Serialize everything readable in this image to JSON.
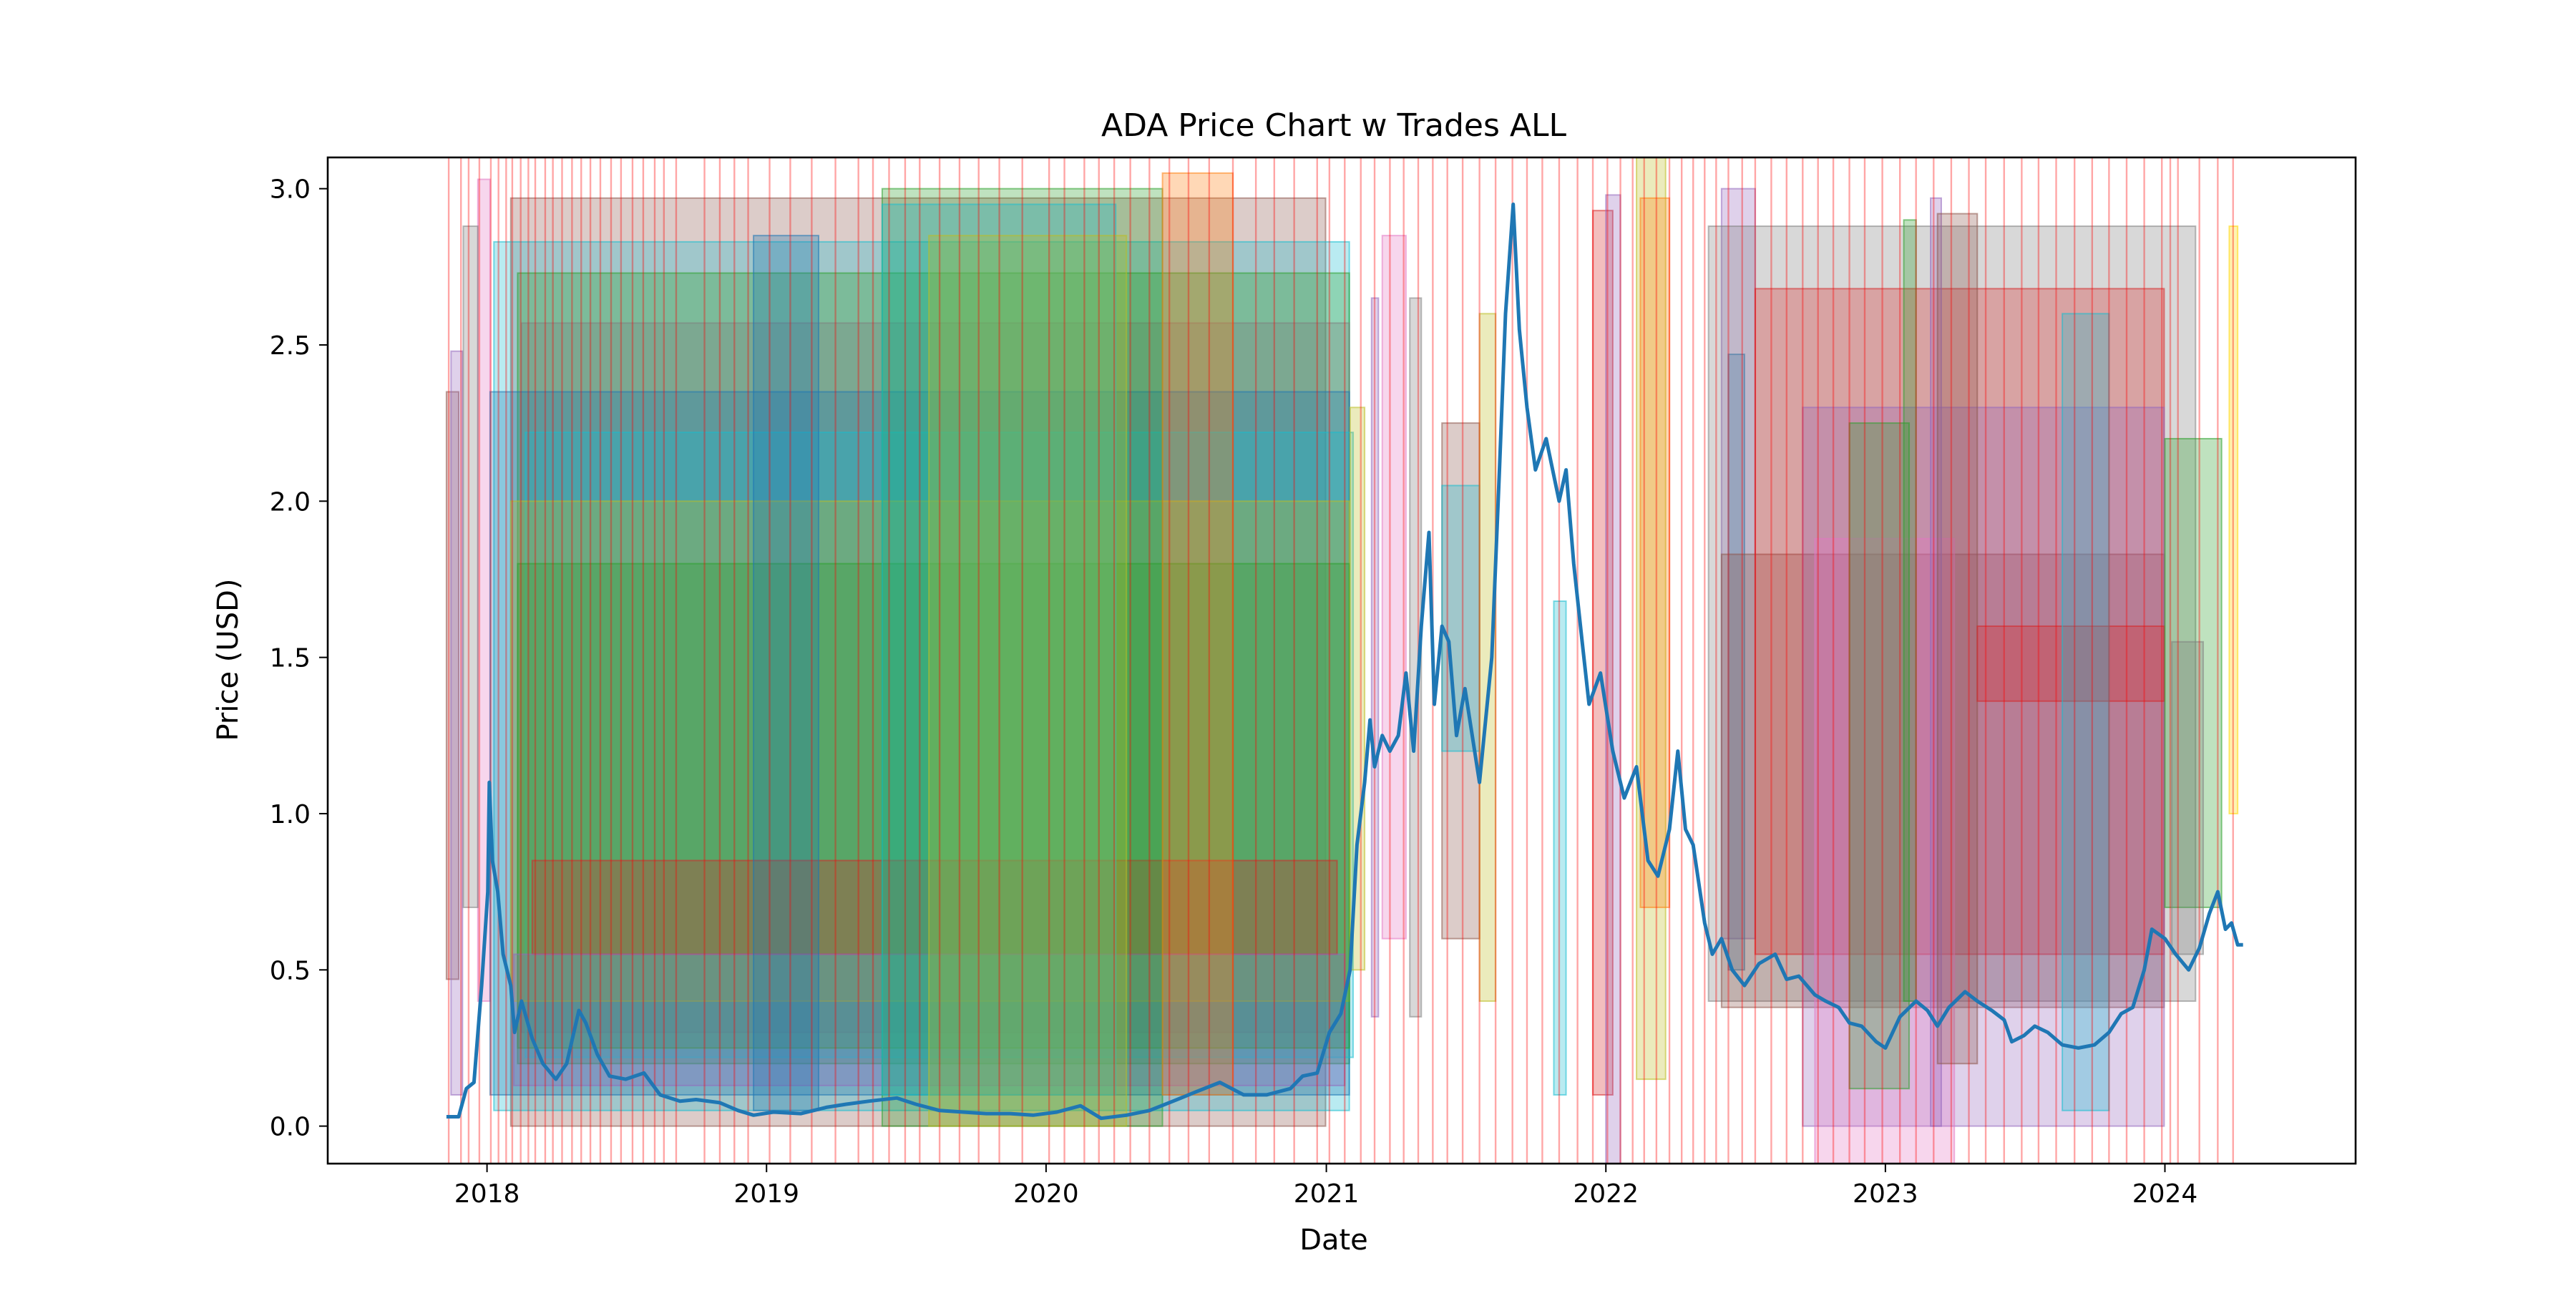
{
  "chart_data": {
    "type": "line",
    "title": "ADA Price Chart w Trades ALL",
    "xlabel": "Date",
    "ylabel": "Price (USD)",
    "xlim": [
      "2017-06-07",
      "2024-09-06"
    ],
    "ylim": [
      -0.12,
      3.1
    ],
    "x_ticks": [
      "2018-01-01",
      "2019-01-01",
      "2020-01-01",
      "2021-01-01",
      "2022-01-01",
      "2023-01-01",
      "2024-01-01"
    ],
    "x_tick_labels": [
      "2018",
      "2019",
      "2020",
      "2021",
      "2022",
      "2023",
      "2024"
    ],
    "y_ticks": [
      0.0,
      0.5,
      1.0,
      1.5,
      2.0,
      2.5,
      3.0
    ],
    "y_tick_labels": [
      "0.0",
      "0.5",
      "1.0",
      "1.5",
      "2.0",
      "2.5",
      "3.0"
    ],
    "grid": false,
    "series": [
      {
        "color": "#1f77b4",
        "points": [
          [
            "2017-11-09",
            0.03
          ],
          [
            "2017-11-25",
            0.03
          ],
          [
            "2017-12-05",
            0.12
          ],
          [
            "2017-12-15",
            0.14
          ],
          [
            "2017-12-25",
            0.45
          ],
          [
            "2017-12-29",
            0.6
          ],
          [
            "2018-01-02",
            0.75
          ],
          [
            "2018-01-04",
            1.1
          ],
          [
            "2018-01-08",
            0.85
          ],
          [
            "2018-01-15",
            0.75
          ],
          [
            "2018-01-22",
            0.55
          ],
          [
            "2018-02-01",
            0.45
          ],
          [
            "2018-02-06",
            0.3
          ],
          [
            "2018-02-15",
            0.4
          ],
          [
            "2018-03-01",
            0.28
          ],
          [
            "2018-03-15",
            0.2
          ],
          [
            "2018-04-01",
            0.15
          ],
          [
            "2018-04-15",
            0.2
          ],
          [
            "2018-05-01",
            0.37
          ],
          [
            "2018-05-10",
            0.33
          ],
          [
            "2018-05-25",
            0.23
          ],
          [
            "2018-06-10",
            0.16
          ],
          [
            "2018-07-01",
            0.15
          ],
          [
            "2018-07-25",
            0.17
          ],
          [
            "2018-08-15",
            0.1
          ],
          [
            "2018-09-10",
            0.08
          ],
          [
            "2018-10-01",
            0.085
          ],
          [
            "2018-11-01",
            0.075
          ],
          [
            "2018-11-25",
            0.05
          ],
          [
            "2018-12-15",
            0.035
          ],
          [
            "2019-01-10",
            0.045
          ],
          [
            "2019-02-15",
            0.04
          ],
          [
            "2019-03-20",
            0.06
          ],
          [
            "2019-04-15",
            0.07
          ],
          [
            "2019-05-15",
            0.08
          ],
          [
            "2019-06-20",
            0.09
          ],
          [
            "2019-07-15",
            0.07
          ],
          [
            "2019-08-15",
            0.05
          ],
          [
            "2019-09-15",
            0.045
          ],
          [
            "2019-10-15",
            0.04
          ],
          [
            "2019-11-15",
            0.04
          ],
          [
            "2019-12-15",
            0.035
          ],
          [
            "2020-01-15",
            0.045
          ],
          [
            "2020-02-15",
            0.065
          ],
          [
            "2020-03-13",
            0.025
          ],
          [
            "2020-04-15",
            0.035
          ],
          [
            "2020-05-15",
            0.05
          ],
          [
            "2020-06-15",
            0.08
          ],
          [
            "2020-07-15",
            0.11
          ],
          [
            "2020-08-15",
            0.14
          ],
          [
            "2020-09-15",
            0.1
          ],
          [
            "2020-10-15",
            0.1
          ],
          [
            "2020-11-15",
            0.12
          ],
          [
            "2020-12-01",
            0.16
          ],
          [
            "2020-12-20",
            0.17
          ],
          [
            "2021-01-05",
            0.3
          ],
          [
            "2021-01-20",
            0.36
          ],
          [
            "2021-02-01",
            0.5
          ],
          [
            "2021-02-10",
            0.9
          ],
          [
            "2021-02-20",
            1.1
          ],
          [
            "2021-02-27",
            1.3
          ],
          [
            "2021-03-05",
            1.15
          ],
          [
            "2021-03-15",
            1.25
          ],
          [
            "2021-03-25",
            1.2
          ],
          [
            "2021-04-05",
            1.25
          ],
          [
            "2021-04-15",
            1.45
          ],
          [
            "2021-04-25",
            1.2
          ],
          [
            "2021-05-05",
            1.6
          ],
          [
            "2021-05-15",
            1.9
          ],
          [
            "2021-05-22",
            1.35
          ],
          [
            "2021-06-01",
            1.6
          ],
          [
            "2021-06-10",
            1.55
          ],
          [
            "2021-06-20",
            1.25
          ],
          [
            "2021-07-01",
            1.4
          ],
          [
            "2021-07-20",
            1.1
          ],
          [
            "2021-07-28",
            1.3
          ],
          [
            "2021-08-05",
            1.5
          ],
          [
            "2021-08-15",
            2.1
          ],
          [
            "2021-08-23",
            2.6
          ],
          [
            "2021-09-02",
            2.95
          ],
          [
            "2021-09-10",
            2.55
          ],
          [
            "2021-09-20",
            2.3
          ],
          [
            "2021-10-01",
            2.1
          ],
          [
            "2021-10-15",
            2.2
          ],
          [
            "2021-11-01",
            2.0
          ],
          [
            "2021-11-10",
            2.1
          ],
          [
            "2021-11-20",
            1.8
          ],
          [
            "2021-12-01",
            1.55
          ],
          [
            "2021-12-10",
            1.35
          ],
          [
            "2021-12-25",
            1.45
          ],
          [
            "2022-01-10",
            1.2
          ],
          [
            "2022-01-25",
            1.05
          ],
          [
            "2022-02-10",
            1.15
          ],
          [
            "2022-02-25",
            0.85
          ],
          [
            "2022-03-10",
            0.8
          ],
          [
            "2022-03-25",
            0.95
          ],
          [
            "2022-04-05",
            1.2
          ],
          [
            "2022-04-15",
            0.95
          ],
          [
            "2022-04-25",
            0.9
          ],
          [
            "2022-05-10",
            0.65
          ],
          [
            "2022-05-20",
            0.55
          ],
          [
            "2022-06-01",
            0.6
          ],
          [
            "2022-06-15",
            0.5
          ],
          [
            "2022-07-01",
            0.45
          ],
          [
            "2022-07-20",
            0.52
          ],
          [
            "2022-08-10",
            0.55
          ],
          [
            "2022-08-25",
            0.47
          ],
          [
            "2022-09-10",
            0.48
          ],
          [
            "2022-10-01",
            0.42
          ],
          [
            "2022-10-15",
            0.4
          ],
          [
            "2022-11-01",
            0.38
          ],
          [
            "2022-11-15",
            0.33
          ],
          [
            "2022-12-01",
            0.32
          ],
          [
            "2022-12-20",
            0.27
          ],
          [
            "2023-01-01",
            0.25
          ],
          [
            "2023-01-20",
            0.35
          ],
          [
            "2023-02-10",
            0.4
          ],
          [
            "2023-02-25",
            0.37
          ],
          [
            "2023-03-10",
            0.32
          ],
          [
            "2023-03-25",
            0.38
          ],
          [
            "2023-04-15",
            0.43
          ],
          [
            "2023-05-01",
            0.4
          ],
          [
            "2023-05-20",
            0.37
          ],
          [
            "2023-06-05",
            0.34
          ],
          [
            "2023-06-15",
            0.27
          ],
          [
            "2023-07-01",
            0.29
          ],
          [
            "2023-07-15",
            0.32
          ],
          [
            "2023-08-01",
            0.3
          ],
          [
            "2023-08-20",
            0.26
          ],
          [
            "2023-09-10",
            0.25
          ],
          [
            "2023-10-01",
            0.26
          ],
          [
            "2023-10-20",
            0.3
          ],
          [
            "2023-11-05",
            0.36
          ],
          [
            "2023-11-20",
            0.38
          ],
          [
            "2023-12-05",
            0.5
          ],
          [
            "2023-12-15",
            0.63
          ],
          [
            "2024-01-01",
            0.6
          ],
          [
            "2024-01-15",
            0.55
          ],
          [
            "2024-02-01",
            0.5
          ],
          [
            "2024-02-15",
            0.57
          ],
          [
            "2024-02-28",
            0.68
          ],
          [
            "2024-03-10",
            0.75
          ],
          [
            "2024-03-20",
            0.63
          ],
          [
            "2024-03-28",
            0.65
          ],
          [
            "2024-04-05",
            0.58
          ],
          [
            "2024-04-12",
            0.58
          ]
        ]
      }
    ],
    "trade_boxes": [
      {
        "x0": "2017-11-09",
        "x1": "2017-11-25",
        "y0": 0.47,
        "y1": 2.35,
        "color": "#8c564b"
      },
      {
        "x0": "2017-11-15",
        "x1": "2017-11-30",
        "y0": 0.1,
        "y1": 2.48,
        "color": "#9467bd"
      },
      {
        "x0": "2017-12-20",
        "x1": "2018-01-05",
        "y0": 0.4,
        "y1": 3.03,
        "color": "#e377c2"
      },
      {
        "x0": "2017-12-01",
        "x1": "2017-12-20",
        "y0": 0.7,
        "y1": 2.88,
        "color": "#7f7f7f"
      },
      {
        "x0": "2018-02-01",
        "x1": "2020-12-31",
        "y0": 0.0,
        "y1": 2.97,
        "color": "#8c564b"
      },
      {
        "x0": "2018-01-10",
        "x1": "2021-01-31",
        "y0": 0.05,
        "y1": 2.83,
        "color": "#17becf"
      },
      {
        "x0": "2018-02-10",
        "x1": "2021-01-31",
        "y0": 0.2,
        "y1": 2.73,
        "color": "#2ca02c"
      },
      {
        "x0": "2018-02-15",
        "x1": "2021-01-31",
        "y0": 0.3,
        "y1": 2.57,
        "color": "#7f7f7f"
      },
      {
        "x0": "2018-01-05",
        "x1": "2021-01-31",
        "y0": 0.1,
        "y1": 2.35,
        "color": "#1f77b4"
      },
      {
        "x0": "2018-02-20",
        "x1": "2021-02-05",
        "y0": 0.22,
        "y1": 2.22,
        "color": "#17becf"
      },
      {
        "x0": "2018-02-01",
        "x1": "2021-01-31",
        "y0": 0.4,
        "y1": 2.0,
        "color": "#bcbd22"
      },
      {
        "x0": "2018-02-10",
        "x1": "2021-01-31",
        "y0": 0.25,
        "y1": 1.8,
        "color": "#2ca02c"
      },
      {
        "x0": "2018-03-01",
        "x1": "2021-01-15",
        "y0": 0.55,
        "y1": 0.85,
        "color": "#d62728"
      },
      {
        "x0": "2018-02-05",
        "x1": "2021-01-25",
        "y0": 0.13,
        "y1": 0.55,
        "color": "#9467bd"
      },
      {
        "x0": "2019-06-01",
        "x1": "2020-06-01",
        "y0": 0.0,
        "y1": 3.0,
        "color": "#2ca02c"
      },
      {
        "x0": "2019-06-01",
        "x1": "2020-04-01",
        "y0": 0.1,
        "y1": 2.95,
        "color": "#17becf"
      },
      {
        "x0": "2018-12-15",
        "x1": "2019-03-10",
        "y0": 0.05,
        "y1": 2.85,
        "color": "#1f77b4"
      },
      {
        "x0": "2019-08-01",
        "x1": "2020-04-15",
        "y0": 0.0,
        "y1": 2.85,
        "color": "#bcbd22"
      },
      {
        "x0": "2020-06-01",
        "x1": "2020-09-01",
        "y0": 0.1,
        "y1": 3.05,
        "color": "#ff7f0e"
      },
      {
        "x0": "2021-02-01",
        "x1": "2021-02-20",
        "y0": 0.5,
        "y1": 2.3,
        "color": "#bcbd22"
      },
      {
        "x0": "2021-03-15",
        "x1": "2021-04-15",
        "y0": 0.6,
        "y1": 2.85,
        "color": "#e377c2"
      },
      {
        "x0": "2021-03-01",
        "x1": "2021-03-10",
        "y0": 0.35,
        "y1": 2.65,
        "color": "#9467bd"
      },
      {
        "x0": "2021-04-20",
        "x1": "2021-05-05",
        "y0": 0.35,
        "y1": 2.65,
        "color": "#7f7f7f"
      },
      {
        "x0": "2021-06-01",
        "x1": "2021-07-20",
        "y0": 0.6,
        "y1": 2.25,
        "color": "#8c564b"
      },
      {
        "x0": "2021-06-01",
        "x1": "2021-07-20",
        "y0": 1.2,
        "y1": 2.05,
        "color": "#17becf"
      },
      {
        "x0": "2021-07-20",
        "x1": "2021-08-10",
        "y0": 0.4,
        "y1": 2.6,
        "color": "#bcbd22"
      },
      {
        "x0": "2021-10-25",
        "x1": "2021-11-10",
        "y0": 0.1,
        "y1": 1.68,
        "color": "#17becf"
      },
      {
        "x0": "2021-12-15",
        "x1": "2022-01-10",
        "y0": 0.1,
        "y1": 2.93,
        "color": "#d62728"
      },
      {
        "x0": "2022-01-01",
        "x1": "2022-01-20",
        "y0": -0.12,
        "y1": 2.98,
        "color": "#9467bd"
      },
      {
        "x0": "2022-02-10",
        "x1": "2022-03-20",
        "y0": 0.15,
        "y1": 3.1,
        "color": "#bcbd22"
      },
      {
        "x0": "2022-02-15",
        "x1": "2022-03-25",
        "y0": 0.7,
        "y1": 2.97,
        "color": "#ff7f0e"
      },
      {
        "x0": "2022-06-01",
        "x1": "2022-07-15",
        "y0": 0.6,
        "y1": 3.0,
        "color": "#9467bd"
      },
      {
        "x0": "2022-06-10",
        "x1": "2022-07-01",
        "y0": 0.5,
        "y1": 2.47,
        "color": "#1f77b4"
      },
      {
        "x0": "2022-05-15",
        "x1": "2024-02-10",
        "y0": 0.4,
        "y1": 2.88,
        "color": "#7f7f7f"
      },
      {
        "x0": "2022-06-01",
        "x1": "2023-12-31",
        "y0": 0.38,
        "y1": 1.83,
        "color": "#8c564b"
      },
      {
        "x0": "2022-07-15",
        "x1": "2023-12-31",
        "y0": 0.55,
        "y1": 2.68,
        "color": "#d62728"
      },
      {
        "x0": "2022-09-15",
        "x1": "2023-12-31",
        "y0": 0.0,
        "y1": 2.3,
        "color": "#9467bd"
      },
      {
        "x0": "2022-10-01",
        "x1": "2023-04-01",
        "y0": -0.12,
        "y1": 1.88,
        "color": "#e377c2"
      },
      {
        "x0": "2022-11-15",
        "x1": "2023-02-01",
        "y0": 0.12,
        "y1": 2.25,
        "color": "#2ca02c"
      },
      {
        "x0": "2023-01-25",
        "x1": "2023-02-10",
        "y0": 0.4,
        "y1": 2.9,
        "color": "#2ca02c"
      },
      {
        "x0": "2023-03-01",
        "x1": "2023-03-15",
        "y0": 0.0,
        "y1": 2.97,
        "color": "#9467bd"
      },
      {
        "x0": "2023-03-10",
        "x1": "2023-05-01",
        "y0": 0.2,
        "y1": 2.92,
        "color": "#8c564b"
      },
      {
        "x0": "2023-05-01",
        "x1": "2023-12-31",
        "y0": 1.36,
        "y1": 1.6,
        "color": "#d62728"
      },
      {
        "x0": "2023-08-20",
        "x1": "2023-10-20",
        "y0": 0.05,
        "y1": 2.6,
        "color": "#17becf"
      },
      {
        "x0": "2024-01-01",
        "x1": "2024-03-15",
        "y0": 0.7,
        "y1": 2.2,
        "color": "#2ca02c"
      },
      {
        "x0": "2024-01-10",
        "x1": "2024-02-20",
        "y0": 0.55,
        "y1": 1.55,
        "color": "#7f7f7f"
      },
      {
        "x0": "2024-03-25",
        "x1": "2024-04-05",
        "y0": 1.0,
        "y1": 2.88,
        "color": "#ffd700"
      }
    ],
    "trade_lines": [
      "2017-11-12",
      "2017-11-28",
      "2017-12-08",
      "2017-12-22",
      "2018-01-06",
      "2018-01-16",
      "2018-01-26",
      "2018-02-03",
      "2018-02-14",
      "2018-02-24",
      "2018-03-05",
      "2018-03-18",
      "2018-03-28",
      "2018-04-09",
      "2018-04-22",
      "2018-05-04",
      "2018-05-16",
      "2018-05-29",
      "2018-06-12",
      "2018-06-25",
      "2018-07-10",
      "2018-07-24",
      "2018-08-08",
      "2018-08-20",
      "2018-09-05",
      "2018-10-12",
      "2018-11-01",
      "2018-11-20",
      "2018-12-08",
      "2019-01-05",
      "2019-02-01",
      "2019-03-01",
      "2019-04-01",
      "2019-05-01",
      "2019-05-20",
      "2019-06-10",
      "2019-07-01",
      "2019-07-20",
      "2019-08-15",
      "2019-09-10",
      "2019-10-05",
      "2019-11-01",
      "2019-12-01",
      "2020-01-05",
      "2020-01-25",
      "2020-02-20",
      "2020-03-10",
      "2020-03-30",
      "2020-04-20",
      "2020-05-15",
      "2020-06-10",
      "2020-07-05",
      "2020-08-01",
      "2020-09-01",
      "2020-10-01",
      "2020-10-25",
      "2020-11-20",
      "2020-12-20",
      "2021-01-05",
      "2021-01-25",
      "2021-02-15",
      "2021-03-05",
      "2021-03-25",
      "2021-04-12",
      "2021-05-01",
      "2021-05-20",
      "2021-06-08",
      "2021-06-28",
      "2021-07-20",
      "2021-08-10",
      "2021-09-01",
      "2021-09-20",
      "2021-10-10",
      "2021-11-01",
      "2021-11-25",
      "2021-12-15",
      "2022-01-03",
      "2022-01-20",
      "2022-02-05",
      "2022-02-20",
      "2022-03-08",
      "2022-03-25",
      "2022-04-10",
      "2022-04-25",
      "2022-05-10",
      "2022-05-25",
      "2022-06-10",
      "2022-06-28",
      "2022-07-15",
      "2022-08-05",
      "2022-08-25",
      "2022-09-15",
      "2022-10-05",
      "2022-10-25",
      "2022-11-15",
      "2022-12-05",
      "2022-12-28",
      "2023-01-20",
      "2023-02-10",
      "2023-03-05",
      "2023-03-28",
      "2023-04-20",
      "2023-05-12",
      "2023-06-05",
      "2023-06-28",
      "2023-07-20",
      "2023-08-12",
      "2023-09-05",
      "2023-09-28",
      "2023-10-20",
      "2023-11-12",
      "2023-12-05",
      "2023-12-28",
      "2024-01-08",
      "2024-01-18",
      "2024-02-15",
      "2024-03-10",
      "2024-03-30"
    ],
    "trade_line_color": "#ff0000"
  }
}
